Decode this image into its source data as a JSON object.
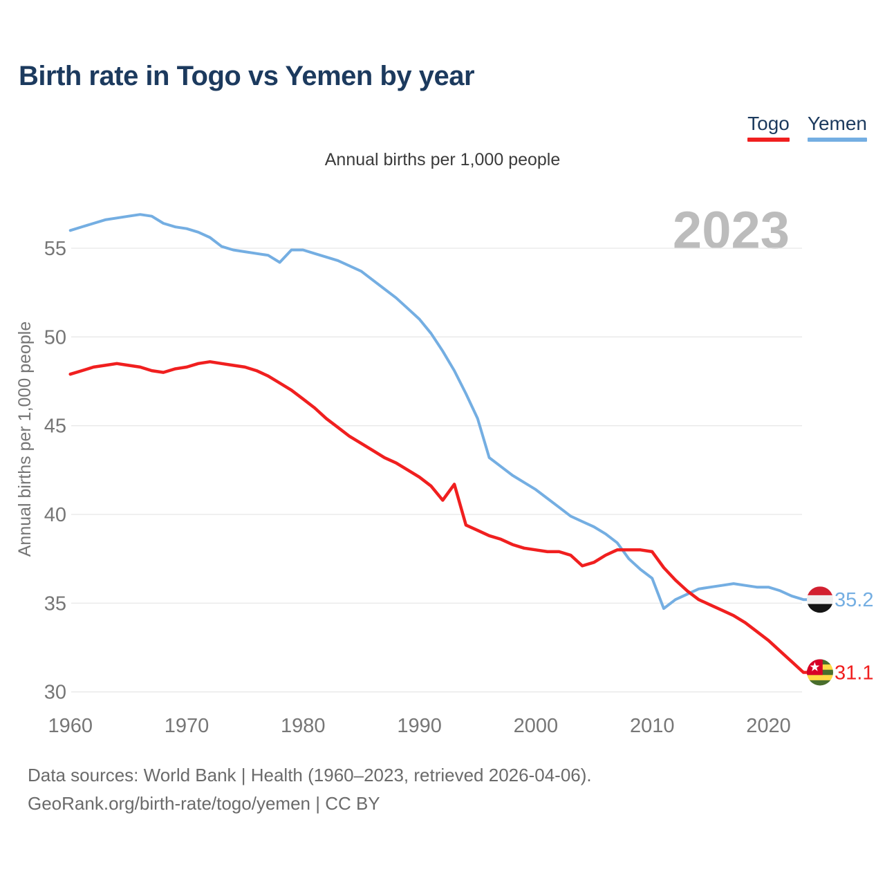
{
  "title": "Birth rate in Togo vs Yemen by year",
  "subtitle": "Annual births per 1,000 people",
  "watermark": "2023",
  "legend": {
    "items": [
      {
        "label": "Togo",
        "color": "#f01f1f"
      },
      {
        "label": "Yemen",
        "color": "#74aee2"
      }
    ]
  },
  "end_labels": [
    {
      "series": "Yemen",
      "value": "35.2",
      "flag": "yemen-flag-icon"
    },
    {
      "series": "Togo",
      "value": "31.1",
      "flag": "togo-flag-icon"
    }
  ],
  "flag_icons": {
    "yemen": {
      "stripes": [
        "#d22030",
        "#f0f0f0",
        "#151515"
      ]
    },
    "togo": {
      "green": "#496e2d",
      "yellow": "#ffda44",
      "red": "#d80027",
      "star": "#ffffff"
    }
  },
  "footer": {
    "line1": "Data sources: World Bank | Health (1960–2023, retrieved 2026-04-06).",
    "line2": "GeoRank.org/birth-rate/togo/yemen | CC BY"
  },
  "chart_data": {
    "type": "line",
    "title": "Birth rate in Togo vs Yemen by year",
    "ylabel": "Annual births per 1,000 people",
    "xlabel": "",
    "grid": true,
    "legend_position": "top-right",
    "xticks": [
      1960,
      1970,
      1980,
      1990,
      2000,
      2010,
      2020
    ],
    "yticks": [
      30,
      35,
      40,
      45,
      50,
      55
    ],
    "ylim": [
      28.6,
      58.3
    ],
    "xlim": [
      1960,
      2023
    ],
    "x": [
      1960,
      1961,
      1962,
      1963,
      1964,
      1965,
      1966,
      1967,
      1968,
      1969,
      1970,
      1971,
      1972,
      1973,
      1974,
      1975,
      1976,
      1977,
      1978,
      1979,
      1980,
      1981,
      1982,
      1983,
      1984,
      1985,
      1986,
      1987,
      1988,
      1989,
      1990,
      1991,
      1992,
      1993,
      1994,
      1995,
      1996,
      1997,
      1998,
      1999,
      2000,
      2001,
      2002,
      2003,
      2004,
      2005,
      2006,
      2007,
      2008,
      2009,
      2010,
      2011,
      2012,
      2013,
      2014,
      2015,
      2016,
      2017,
      2018,
      2019,
      2020,
      2021,
      2022,
      2023
    ],
    "series": [
      {
        "name": "Togo",
        "color": "#f01f1f",
        "values": [
          47.9,
          48.1,
          48.3,
          48.4,
          48.5,
          48.4,
          48.3,
          48.1,
          48.0,
          48.2,
          48.3,
          48.5,
          48.6,
          48.5,
          48.4,
          48.3,
          48.1,
          47.8,
          47.4,
          47.0,
          46.5,
          46.0,
          45.4,
          44.9,
          44.4,
          44.0,
          43.6,
          43.2,
          42.9,
          42.5,
          42.1,
          41.6,
          40.8,
          41.7,
          39.4,
          39.1,
          38.8,
          38.6,
          38.3,
          38.1,
          38.0,
          37.9,
          37.9,
          37.7,
          37.1,
          37.3,
          37.7,
          38.0,
          38.0,
          38.0,
          37.9,
          37.0,
          36.3,
          35.7,
          35.2,
          34.9,
          34.6,
          34.3,
          33.9,
          33.4,
          32.9,
          32.3,
          31.7,
          31.1
        ]
      },
      {
        "name": "Yemen",
        "color": "#74aee2",
        "values": [
          56.0,
          56.2,
          56.4,
          56.6,
          56.7,
          56.8,
          56.9,
          56.8,
          56.4,
          56.2,
          56.1,
          55.9,
          55.6,
          55.1,
          54.9,
          54.8,
          54.7,
          54.6,
          54.2,
          54.9,
          54.9,
          54.7,
          54.5,
          54.3,
          54.0,
          53.7,
          53.2,
          52.7,
          52.2,
          51.6,
          51.0,
          50.2,
          49.2,
          48.1,
          46.8,
          45.4,
          43.2,
          42.7,
          42.2,
          41.8,
          41.4,
          40.9,
          40.4,
          39.9,
          39.6,
          39.3,
          38.9,
          38.4,
          37.5,
          36.9,
          36.4,
          34.7,
          35.2,
          35.5,
          35.8,
          35.9,
          36.0,
          36.1,
          36.0,
          35.9,
          35.9,
          35.7,
          35.4,
          35.2
        ]
      }
    ]
  }
}
